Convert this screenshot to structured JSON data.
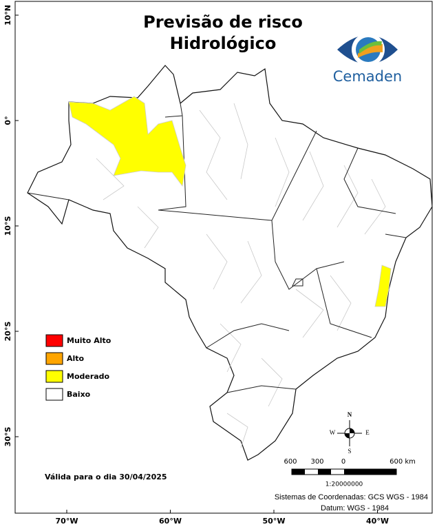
{
  "header": {
    "title_lines": [
      "Previsão de risco",
      "Hidrológico"
    ],
    "logo_text": "Cemaden"
  },
  "map": {
    "lat_ticks": [
      {
        "value": 10,
        "label": "10°N"
      },
      {
        "value": 0,
        "label": "0°"
      },
      {
        "value": -10,
        "label": "10°S"
      },
      {
        "value": -20,
        "label": "20°S"
      },
      {
        "value": -30,
        "label": "30°S"
      }
    ],
    "lon_ticks": [
      {
        "value": -70,
        "label": "70°W"
      },
      {
        "value": -60,
        "label": "60°W"
      },
      {
        "value": -50,
        "label": "50°W"
      },
      {
        "value": -40,
        "label": "40°W"
      }
    ]
  },
  "legend": {
    "items": [
      {
        "label": "Muito Alto",
        "color": "#ff0000"
      },
      {
        "label": "Alto",
        "color": "#ffa500"
      },
      {
        "label": "Moderado",
        "color": "#ffff00"
      },
      {
        "label": "Baixo",
        "color": "#ffffff"
      }
    ]
  },
  "scale_bar": {
    "labels": [
      "600",
      "300",
      "0",
      "600 km"
    ],
    "ratio": "1:20000000"
  },
  "compass": {
    "n": "N",
    "s": "S",
    "e": "E",
    "w": "W"
  },
  "validity": "Válida para o dia 30/04/2025",
  "footer": {
    "lines": [
      "Sistemas de Coordenadas: GCS WGS - 1984",
      "Datum: WGS - 1984"
    ]
  }
}
